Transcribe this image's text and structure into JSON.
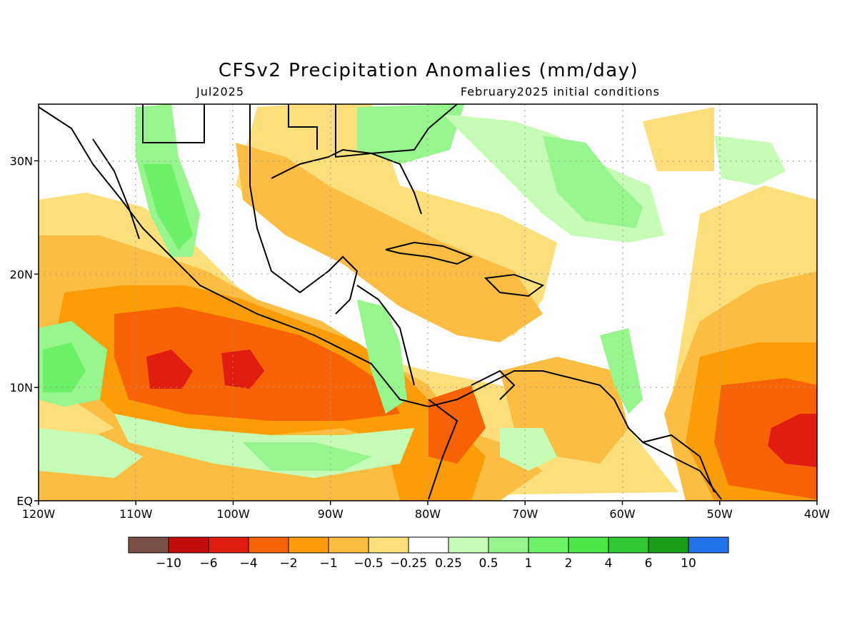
{
  "title": "CFSv2 Precipitation Anomalies (mm/day)",
  "subtitle_left": "Jul2025",
  "subtitle_right": "February2025 initial conditions",
  "map": {
    "lon_range": [
      -120,
      -40
    ],
    "lat_range": [
      0,
      35
    ],
    "lon_ticks": [
      "120W",
      "110W",
      "100W",
      "90W",
      "80W",
      "70W",
      "60W",
      "50W",
      "40W"
    ],
    "lat_ticks": [
      "EQ",
      "10N",
      "20N",
      "30N"
    ],
    "gridlines": true
  },
  "colorbar": {
    "colors": [
      "#7a5048",
      "#c40c0c",
      "#e01e10",
      "#f76205",
      "#fb9c08",
      "#fcbe42",
      "#fde07c",
      "#ffffff",
      "#c6fdb6",
      "#96f58c",
      "#6ef068",
      "#4ce649",
      "#32c732",
      "#1a9e1a",
      "#2272e8"
    ],
    "labels": [
      "−10",
      "−6",
      "−4",
      "−2",
      "−1",
      "−0.5",
      "−0.25",
      "0.25",
      "0.5",
      "1",
      "2",
      "4",
      "6",
      "10"
    ]
  }
}
